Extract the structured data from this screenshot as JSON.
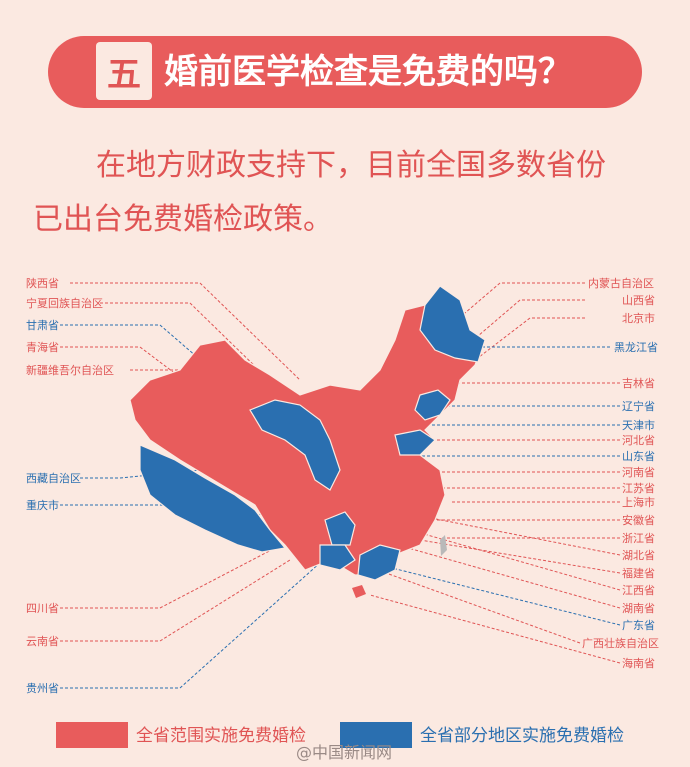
{
  "header": {
    "number": "五",
    "title": "婚前医学检查是免费的吗？"
  },
  "intro": {
    "line1": "在地方财政支持下，目前全国多数省份",
    "line2": "已出台免费婚检政策。"
  },
  "left_labels": [
    "陕西省",
    "宁夏回族自治区",
    "甘肃省",
    "青海省",
    "新疆维吾尔自治区",
    "西藏自治区",
    "重庆市",
    "四川省",
    "云南省",
    "贵州省"
  ],
  "right_labels": [
    "内蒙古自治区",
    "山西省",
    "北京市",
    "黑龙江省",
    "吉林省",
    "辽宁省",
    "天津市",
    "河北省",
    "山东省",
    "河南省",
    "江苏省",
    "上海市",
    "安徽省",
    "浙江省",
    "湖北省",
    "福建省",
    "江西省",
    "湖南省",
    "广东省",
    "广西壮族自治区",
    "海南省"
  ],
  "legend": {
    "full": "全省范围实施免费婚检",
    "partial": "全省部分地区实施免费婚检"
  },
  "colors": {
    "full": "#e85c5c",
    "partial": "#2a6fb0",
    "background": "#fbe9e1"
  },
  "watermark": "@中国新闻网"
}
